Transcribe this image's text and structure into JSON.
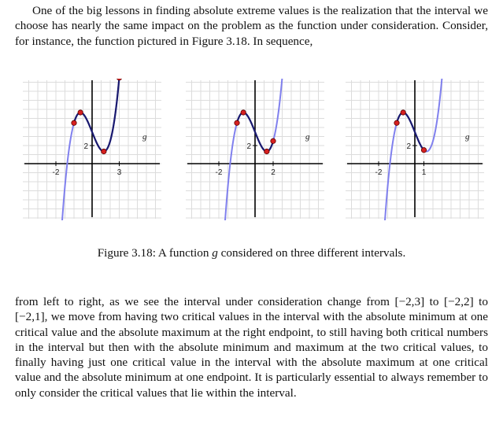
{
  "intro": {
    "text": "One of the big lessons in finding absolute extreme values is the realization that the interval we choose has nearly the same impact on the problem as the function under consideration. Consider, for instance, the function pictured in Figure 3.18. In sequence,"
  },
  "figure": {
    "caption_prefix": "Figure 3.18: A function",
    "caption_fn": "g",
    "caption_suffix": "considered on three different intervals.",
    "panels": [
      {
        "fn_label": "g",
        "y_tick_label": "2",
        "x_tick_left": "-2",
        "x_tick_right": "3",
        "interval": [
          -2,
          3
        ]
      },
      {
        "fn_label": "g",
        "y_tick_label": "2",
        "x_tick_left": "-2",
        "x_tick_right": "2",
        "interval": [
          -2,
          2
        ]
      },
      {
        "fn_label": "g",
        "y_tick_label": "2",
        "x_tick_left": "-2",
        "x_tick_right": "1",
        "interval": [
          -2,
          1
        ]
      }
    ],
    "colors": {
      "full_curve": "#8080ee",
      "interval_curve": "#1a1a6e",
      "points": "#d62020"
    }
  },
  "outro": {
    "text": "from left to right, as we see the interval under consideration change from [−2,3] to [−2,2] to [−2,1], we move from having two critical values in the interval with the absolute minimum at one critical value and the absolute maximum at the right endpoint, to still having both critical numbers in the interval but then with the absolute minimum and maximum at the two critical values, to finally having just one critical value in the interval with the absolute maximum at one critical value and the absolute minimum at one endpoint. It is particularly essential to always remember to only consider the critical values that lie within the interval."
  }
}
